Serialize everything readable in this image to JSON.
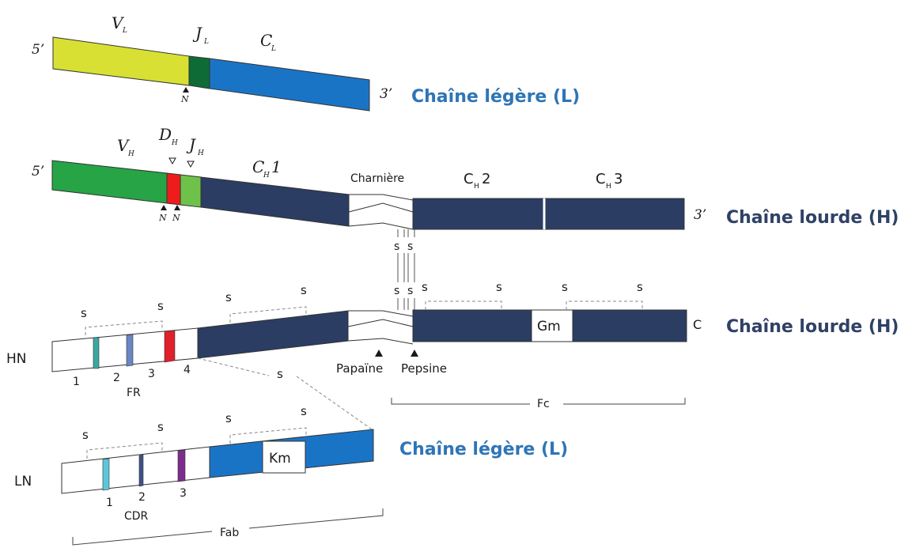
{
  "colors": {
    "variable_light": "#d8e034",
    "j_light": "#0f6b36",
    "constant_light": "#1a74c6",
    "variable_heavy": "#26a446",
    "d_heavy": "#ef1c1c",
    "j_heavy": "#6ec24a",
    "constant_heavy": "#2b3d63",
    "title_light": "#2e75b6",
    "title_heavy": "#2f4166"
  },
  "light_gene": {
    "five_prime": "5’",
    "three_prime": "3’",
    "v_main": "V",
    "v_sub": "L",
    "j_main": "J",
    "j_sub": "L",
    "c_main": "C",
    "c_sub": "L",
    "n_marker": "N",
    "title": "Chaîne légère (L)"
  },
  "heavy_gene": {
    "five_prime": "5’",
    "three_prime": "3’",
    "v_main": "V",
    "v_sub": "H",
    "d_main": "D",
    "d_sub": "H",
    "j_main": "J",
    "j_sub": "H",
    "ch1_main": "C",
    "ch1_sub": "H",
    "ch1_num": "1",
    "hinge": "Charnière",
    "ch2_main": "C",
    "ch2_sub": "H",
    "ch2_num": "2",
    "ch3_main": "C",
    "ch3_sub": "H",
    "ch3_num": "3",
    "n_marker_1": "N",
    "n_marker_2": "N",
    "title": "Chaîne lourde (H)"
  },
  "heavy_protein": {
    "prefix": "HN",
    "suffix": "C",
    "s": "s",
    "fr_numbers": [
      "1",
      "2",
      "3",
      "4"
    ],
    "fr_label": "FR",
    "allotype": "Gm",
    "papain": "Papaïne",
    "pepsin": "Pepsine",
    "fc": "Fc",
    "title": "Chaîne lourde (H)"
  },
  "light_protein": {
    "prefix": "LN",
    "s": "s",
    "cdr_numbers": [
      "1",
      "2",
      "3"
    ],
    "cdr_label": "CDR",
    "allotype": "Km",
    "fab": "Fab",
    "title": "Chaîne légère (L)"
  }
}
